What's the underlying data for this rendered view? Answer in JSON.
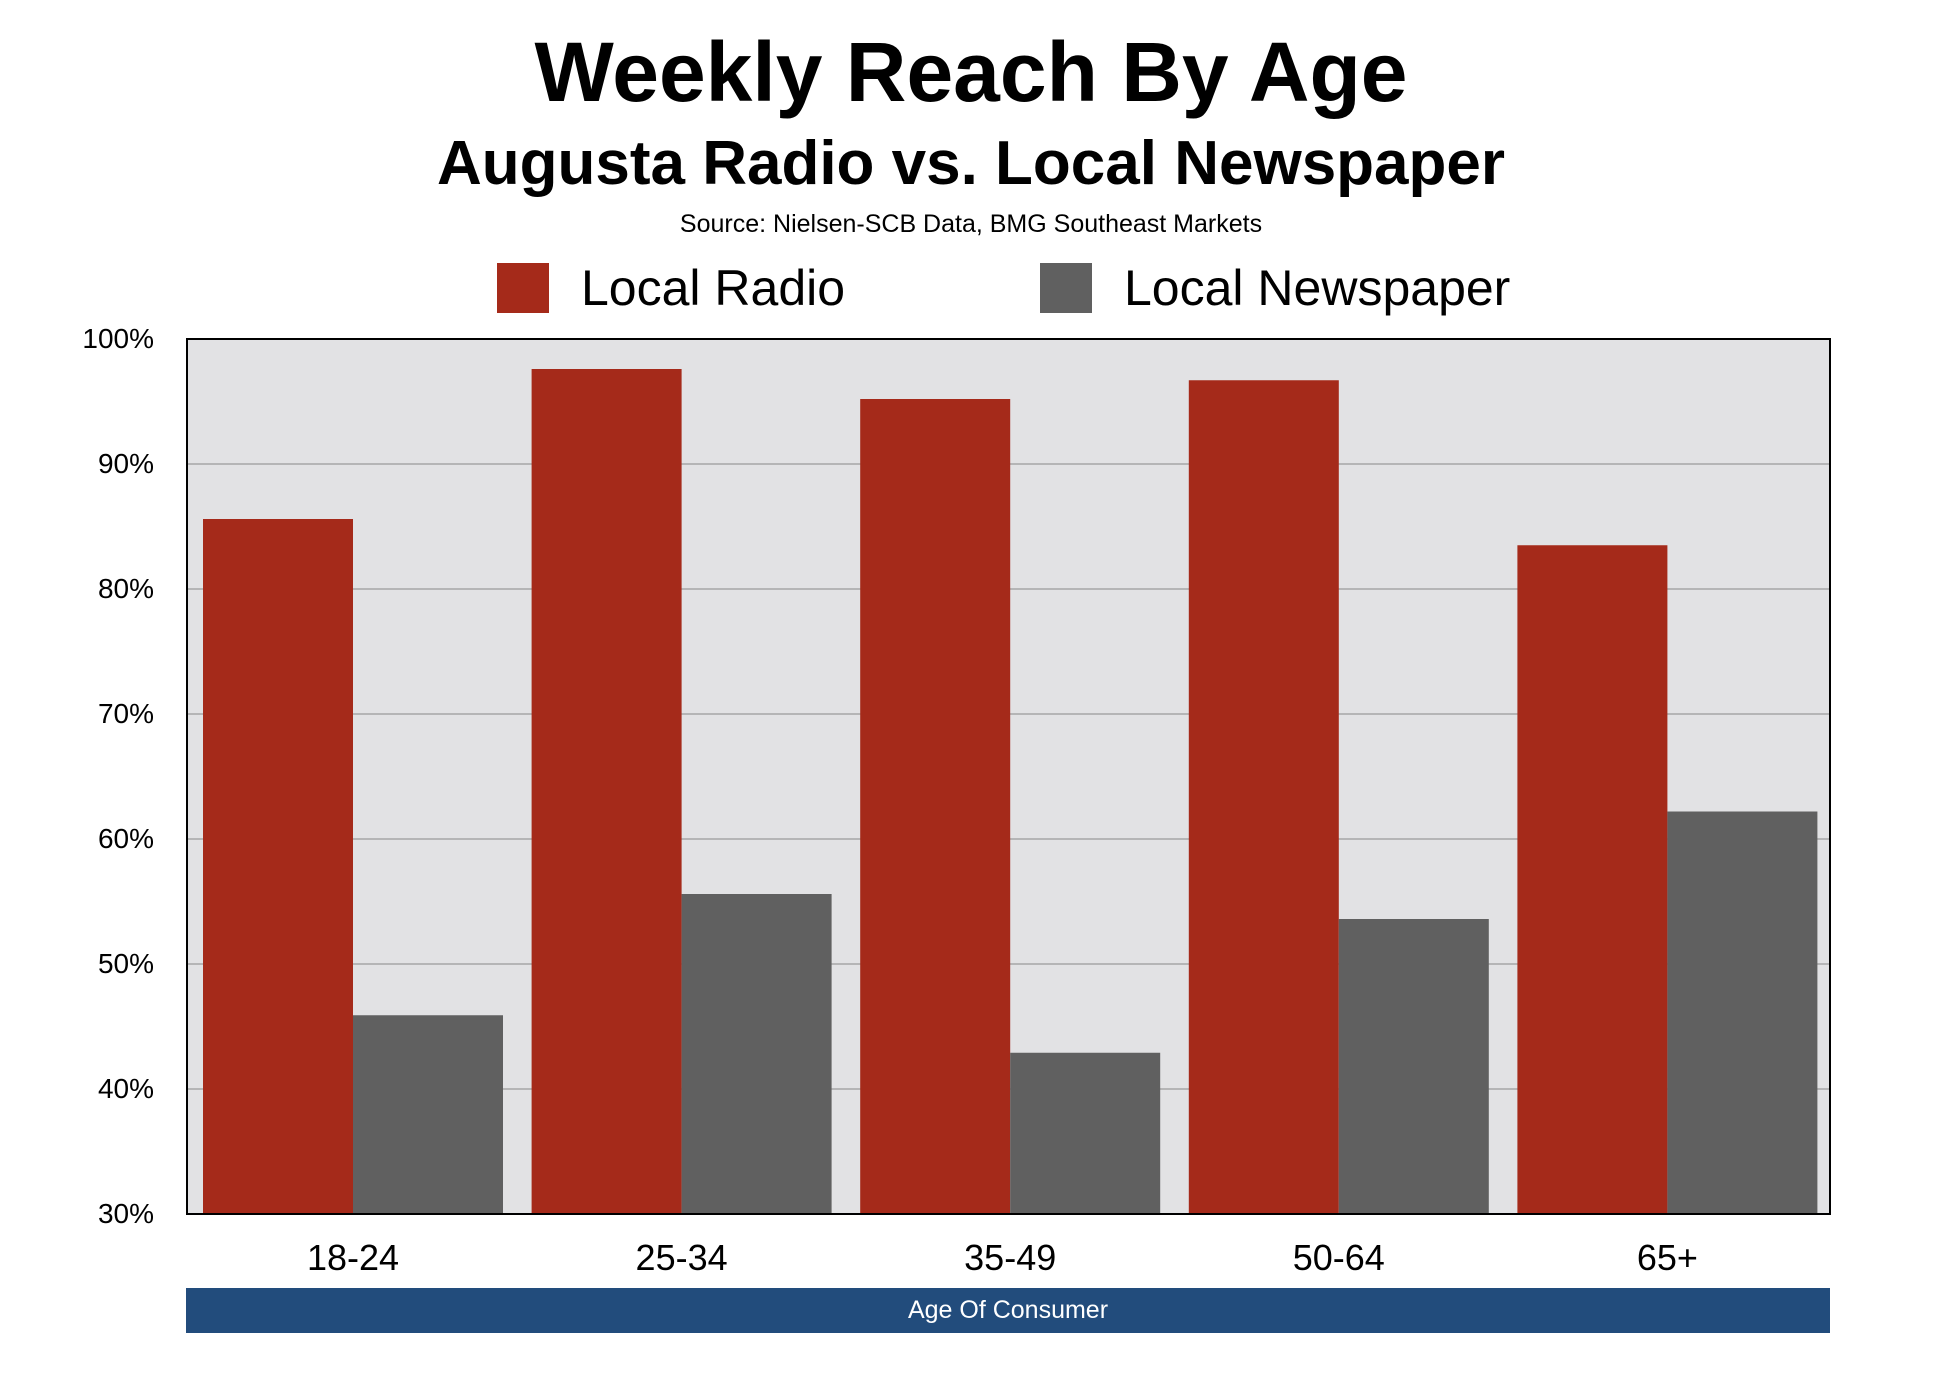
{
  "chart_data": {
    "type": "bar",
    "title": "Weekly Reach By Age",
    "subtitle": "Augusta Radio vs. Local Newspaper",
    "source": "Source: Nielsen-SCB Data, BMG Southeast Markets",
    "xlabel": "Age Of Consumer",
    "ylabel": "",
    "categories": [
      "18-24",
      "25-34",
      "35-49",
      "50-64",
      "65+"
    ],
    "series": [
      {
        "name": "Local Radio",
        "color": "#a52a1a",
        "values": [
          85.6,
          97.6,
          95.2,
          96.7,
          83.5
        ]
      },
      {
        "name": "Local Newspaper",
        "color": "#606060",
        "values": [
          45.9,
          55.6,
          42.9,
          53.6,
          62.2
        ]
      }
    ],
    "ylim": [
      30,
      100
    ],
    "yticks": [
      30,
      40,
      50,
      60,
      70,
      80,
      90,
      100
    ],
    "ytick_labels": [
      "30%",
      "40%",
      "50%",
      "60%",
      "70%",
      "80%",
      "90%",
      "100%"
    ],
    "grid": true,
    "legend_position": "top-center",
    "plot_background": "#e2e2e4",
    "gridline_color": "#a6a6a6",
    "axis_banner_color": "#224c7c"
  }
}
